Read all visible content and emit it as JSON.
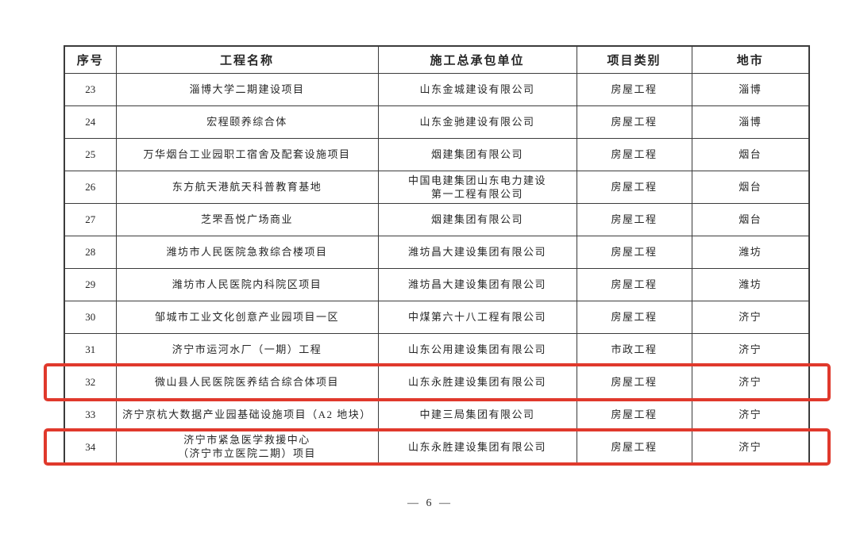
{
  "page": {
    "page_number": "— 6 —"
  },
  "highlight_color": "#e0392c",
  "table": {
    "headers": [
      "序号",
      "工程名称",
      "施工总承包单位",
      "项目类别",
      "地市"
    ],
    "rows": [
      {
        "no": "23",
        "project": "淄博大学二期建设项目",
        "contractor": "山东金城建设有限公司",
        "category": "房屋工程",
        "city": "淄博",
        "highlighted": false
      },
      {
        "no": "24",
        "project": "宏程颐养综合体",
        "contractor": "山东金驰建设有限公司",
        "category": "房屋工程",
        "city": "淄博",
        "highlighted": false
      },
      {
        "no": "25",
        "project": "万华烟台工业园职工宿舍及配套设施项目",
        "contractor": "烟建集团有限公司",
        "category": "房屋工程",
        "city": "烟台",
        "highlighted": false
      },
      {
        "no": "26",
        "project": "东方航天港航天科普教育基地",
        "contractor": "中国电建集团山东电力建设\n第一工程有限公司",
        "category": "房屋工程",
        "city": "烟台",
        "highlighted": false
      },
      {
        "no": "27",
        "project": "芝罘吾悦广场商业",
        "contractor": "烟建集团有限公司",
        "category": "房屋工程",
        "city": "烟台",
        "highlighted": false
      },
      {
        "no": "28",
        "project": "潍坊市人民医院急救综合楼项目",
        "contractor": "潍坊昌大建设集团有限公司",
        "category": "房屋工程",
        "city": "潍坊",
        "highlighted": false
      },
      {
        "no": "29",
        "project": "潍坊市人民医院内科院区项目",
        "contractor": "潍坊昌大建设集团有限公司",
        "category": "房屋工程",
        "city": "潍坊",
        "highlighted": false
      },
      {
        "no": "30",
        "project": "邹城市工业文化创意产业园项目一区",
        "contractor": "中煤第六十八工程有限公司",
        "category": "房屋工程",
        "city": "济宁",
        "highlighted": false
      },
      {
        "no": "31",
        "project": "济宁市运河水厂（一期）工程",
        "contractor": "山东公用建设集团有限公司",
        "category": "市政工程",
        "city": "济宁",
        "highlighted": false
      },
      {
        "no": "32",
        "project": "微山县人民医院医养结合综合体项目",
        "contractor": "山东永胜建设集团有限公司",
        "category": "房屋工程",
        "city": "济宁",
        "highlighted": true
      },
      {
        "no": "33",
        "project": "济宁京杭大数据产业园基础设施项目（A2 地块）",
        "contractor": "中建三局集团有限公司",
        "category": "房屋工程",
        "city": "济宁",
        "highlighted": false
      },
      {
        "no": "34",
        "project": "济宁市紧急医学救援中心\n（济宁市立医院二期）项目",
        "contractor": "山东永胜建设集团有限公司",
        "category": "房屋工程",
        "city": "济宁",
        "highlighted": true
      }
    ]
  }
}
